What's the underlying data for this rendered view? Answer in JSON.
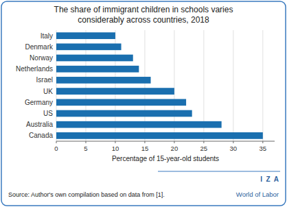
{
  "chart_data": {
    "type": "bar",
    "orientation": "horizontal",
    "title": "The share of immigrant children in schools varies",
    "subtitle": "considerably across countries, 2018",
    "x_label": "Percentage of 15-year-old students",
    "categories": [
      "Canada",
      "Australia",
      "US",
      "Germany",
      "UK",
      "Israel",
      "Netherlands",
      "Norway",
      "Denmark",
      "Italy"
    ],
    "values": [
      35,
      28,
      23,
      22,
      20,
      16,
      14,
      13,
      11,
      10
    ],
    "color": "#1a6faf",
    "xlim": [
      0,
      37
    ],
    "xticks": [
      0,
      5,
      10,
      15,
      20,
      25,
      30,
      35
    ],
    "grid": true,
    "annotations": [
      "Source: Author's own compilation based on data from [1].",
      "I  Z  A",
      "World of Labor"
    ]
  }
}
